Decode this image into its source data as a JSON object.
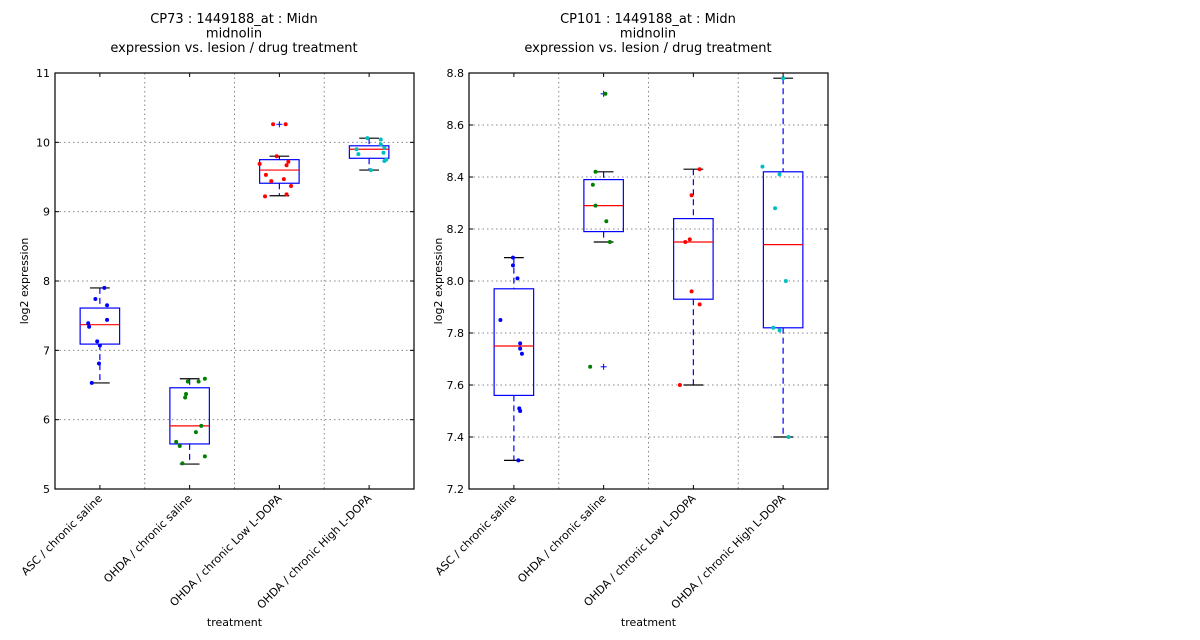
{
  "chart_data": [
    {
      "type": "box",
      "title_lines": [
        "CP73 : 1449188_at : Midn",
        "midnolin",
        "expression vs. lesion / drug treatment"
      ],
      "xlabel": "treatment",
      "ylabel": "log2 expression",
      "ylim": [
        5,
        11
      ],
      "yticks": [
        5,
        6,
        7,
        8,
        9,
        10,
        11
      ],
      "ytick_labels": [
        "5",
        "6",
        "7",
        "8",
        "9",
        "10",
        "11"
      ],
      "grid": true,
      "categories": [
        "ASC / chronic saline",
        "OHDA / chronic saline",
        "OHDA / chronic Low L-DOPA",
        "OHDA / chronic High L-DOPA"
      ],
      "point_colors": [
        "#0000ff",
        "#008000",
        "#ff0000",
        "#00bfbf"
      ],
      "boxes": [
        {
          "whislo": 6.53,
          "q1": 7.09,
          "med": 7.37,
          "q3": 7.61,
          "whishi": 7.9,
          "fliers": []
        },
        {
          "whislo": 5.36,
          "q1": 5.65,
          "med": 5.91,
          "q3": 6.46,
          "whishi": 6.59,
          "fliers": []
        },
        {
          "whislo": 9.23,
          "q1": 9.41,
          "med": 9.6,
          "q3": 9.75,
          "whishi": 9.8,
          "fliers": [
            10.26
          ]
        },
        {
          "whislo": 9.6,
          "q1": 9.77,
          "med": 9.9,
          "q3": 9.95,
          "whishi": 10.06,
          "fliers": []
        }
      ],
      "points": [
        [
          {
            "j": 0.05,
            "y": 7.9
          },
          {
            "j": -0.05,
            "y": 7.74
          },
          {
            "j": 0.08,
            "y": 7.65
          },
          {
            "j": 0.08,
            "y": 7.44
          },
          {
            "j": -0.13,
            "y": 7.39
          },
          {
            "j": -0.12,
            "y": 7.34
          },
          {
            "j": -0.03,
            "y": 7.13
          },
          {
            "j": 0.0,
            "y": 7.07
          },
          {
            "j": -0.01,
            "y": 6.81
          },
          {
            "j": -0.09,
            "y": 6.53
          }
        ],
        [
          {
            "j": 0.17,
            "y": 6.59
          },
          {
            "j": 0.1,
            "y": 6.55
          },
          {
            "j": -0.02,
            "y": 6.55
          },
          {
            "j": -0.04,
            "y": 6.37
          },
          {
            "j": -0.05,
            "y": 6.32
          },
          {
            "j": 0.13,
            "y": 5.91
          },
          {
            "j": 0.07,
            "y": 5.82
          },
          {
            "j": -0.15,
            "y": 5.68
          },
          {
            "j": -0.11,
            "y": 5.62
          },
          {
            "j": 0.17,
            "y": 5.47
          },
          {
            "j": -0.08,
            "y": 5.37
          }
        ],
        [
          {
            "j": -0.07,
            "y": 10.26
          },
          {
            "j": 0.07,
            "y": 10.26
          },
          {
            "j": -0.03,
            "y": 9.8
          },
          {
            "j": 0.1,
            "y": 9.72
          },
          {
            "j": 0.08,
            "y": 9.67
          },
          {
            "j": -0.22,
            "y": 9.69
          },
          {
            "j": -0.15,
            "y": 9.53
          },
          {
            "j": -0.09,
            "y": 9.44
          },
          {
            "j": 0.05,
            "y": 9.47
          },
          {
            "j": 0.13,
            "y": 9.37
          },
          {
            "j": 0.08,
            "y": 9.25
          },
          {
            "j": -0.16,
            "y": 9.22
          }
        ],
        [
          {
            "j": -0.02,
            "y": 10.06
          },
          {
            "j": 0.13,
            "y": 10.04
          },
          {
            "j": 0.13,
            "y": 9.97
          },
          {
            "j": 0.17,
            "y": 9.92
          },
          {
            "j": -0.14,
            "y": 9.9
          },
          {
            "j": 0.16,
            "y": 9.85
          },
          {
            "j": -0.12,
            "y": 9.83
          },
          {
            "j": 0.19,
            "y": 9.75
          },
          {
            "j": 0.17,
            "y": 9.73
          },
          {
            "j": 0.02,
            "y": 9.6
          }
        ]
      ]
    },
    {
      "type": "box",
      "title_lines": [
        "CP101 : 1449188_at : Midn",
        "midnolin",
        "expression vs. lesion / drug treatment"
      ],
      "xlabel": "treatment",
      "ylabel": "log2 expression",
      "ylim": [
        7.2,
        8.8
      ],
      "yticks": [
        7.2,
        7.4,
        7.6,
        7.8,
        8.0,
        8.2,
        8.4,
        8.6,
        8.8
      ],
      "ytick_labels": [
        "7.2",
        "7.4",
        "7.6",
        "7.8",
        "8.0",
        "8.2",
        "8.4",
        "8.6",
        "8.8"
      ],
      "grid": true,
      "categories": [
        "ASC / chronic saline",
        "OHDA / chronic saline",
        "OHDA / chronic Low L-DOPA",
        "OHDA / chronic High L-DOPA"
      ],
      "point_colors": [
        "#0000ff",
        "#008000",
        "#ff0000",
        "#00bfbf"
      ],
      "boxes": [
        {
          "whislo": 7.31,
          "q1": 7.56,
          "med": 7.75,
          "q3": 7.97,
          "whishi": 8.09,
          "fliers": []
        },
        {
          "whislo": 8.15,
          "q1": 8.19,
          "med": 8.29,
          "q3": 8.39,
          "whishi": 8.42,
          "fliers": [
            8.72,
            7.67
          ]
        },
        {
          "whislo": 7.6,
          "q1": 7.93,
          "med": 8.15,
          "q3": 8.24,
          "whishi": 8.43,
          "fliers": []
        },
        {
          "whislo": 7.4,
          "q1": 7.82,
          "med": 8.14,
          "q3": 8.42,
          "whishi": 8.78,
          "fliers": []
        }
      ],
      "points": [
        [
          {
            "j": -0.01,
            "y": 8.09
          },
          {
            "j": -0.01,
            "y": 8.06
          },
          {
            "j": 0.04,
            "y": 8.01
          },
          {
            "j": -0.15,
            "y": 7.85
          },
          {
            "j": 0.07,
            "y": 7.76
          },
          {
            "j": 0.07,
            "y": 7.74
          },
          {
            "j": 0.09,
            "y": 7.72
          },
          {
            "j": 0.06,
            "y": 7.51
          },
          {
            "j": 0.07,
            "y": 7.5
          },
          {
            "j": 0.05,
            "y": 7.31
          }
        ],
        [
          {
            "j": 0.02,
            "y": 8.72
          },
          {
            "j": -0.09,
            "y": 8.42
          },
          {
            "j": -0.12,
            "y": 8.37
          },
          {
            "j": -0.09,
            "y": 8.29
          },
          {
            "j": 0.03,
            "y": 8.23
          },
          {
            "j": 0.07,
            "y": 8.15
          },
          {
            "j": -0.15,
            "y": 7.67
          }
        ],
        [
          {
            "j": 0.07,
            "y": 8.43
          },
          {
            "j": -0.02,
            "y": 8.33
          },
          {
            "j": -0.04,
            "y": 8.16
          },
          {
            "j": -0.09,
            "y": 8.15
          },
          {
            "j": -0.02,
            "y": 7.96
          },
          {
            "j": 0.07,
            "y": 7.91
          },
          {
            "j": -0.15,
            "y": 7.6
          }
        ],
        [
          {
            "j": 0.0,
            "y": 8.78
          },
          {
            "j": -0.23,
            "y": 8.44
          },
          {
            "j": -0.04,
            "y": 8.41
          },
          {
            "j": -0.09,
            "y": 8.28
          },
          {
            "j": 0.03,
            "y": 8.0
          },
          {
            "j": -0.11,
            "y": 7.82
          },
          {
            "j": -0.04,
            "y": 7.81
          },
          {
            "j": 0.06,
            "y": 7.4
          }
        ]
      ]
    }
  ]
}
